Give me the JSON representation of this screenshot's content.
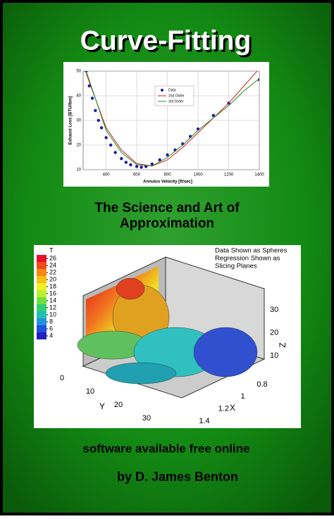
{
  "title": "Curve-Fitting",
  "fit_chart": {
    "type": "scatter",
    "xlabel": "Annulus Velocity [ft/sec]",
    "ylabel": "Exhaust Loss [BTU/lbm]",
    "xlim": [
      250,
      1400
    ],
    "ylim": [
      10,
      50
    ],
    "xticks": [
      400,
      600,
      800,
      1000,
      1200,
      1400
    ],
    "yticks": [
      10,
      20,
      30,
      40,
      50
    ],
    "grid": true,
    "legend": "upper-center",
    "series": [
      {
        "name": "Data",
        "color": "#1a1aa6",
        "kind": "points",
        "x": [
          270,
          290,
          310,
          330,
          350,
          370,
          400,
          430,
          460,
          500,
          530,
          560,
          600,
          630,
          660,
          700,
          750,
          800,
          850,
          900,
          950,
          1000,
          1100,
          1200,
          1400
        ],
        "values": [
          50,
          44,
          39,
          34,
          30,
          27,
          23,
          20,
          17,
          14.5,
          13,
          12,
          11.3,
          11,
          11.3,
          12.3,
          14,
          16,
          18,
          20.5,
          23.5,
          26.5,
          32,
          37,
          46.5
        ]
      },
      {
        "name": "2nd Order",
        "color": "#cc2222",
        "kind": "line",
        "x": [
          270,
          400,
          500,
          600,
          700,
          800,
          900,
          1000,
          1100,
          1200,
          1300,
          1400
        ],
        "values": [
          49,
          27,
          18,
          12.5,
          11.5,
          14,
          19,
          25,
          31,
          37,
          44,
          51
        ]
      },
      {
        "name": "3rd Order",
        "color": "#228822",
        "kind": "line",
        "x": [
          270,
          400,
          500,
          600,
          700,
          800,
          900,
          1000,
          1100,
          1200,
          1300,
          1400
        ],
        "values": [
          50,
          26,
          17,
          12,
          11.5,
          15,
          20,
          26,
          31,
          36,
          42,
          47
        ]
      }
    ]
  },
  "subtitle": [
    "The Science and Art of",
    "Approximation"
  ],
  "surface_chart": {
    "annotation": [
      "Data Shown as Spheres",
      "Regression Shown as",
      "Slicing Planes"
    ],
    "colorbar_title": "T",
    "colorbar_ticks": [
      26,
      24,
      22,
      20,
      18,
      16,
      14,
      12,
      10,
      8,
      6,
      4
    ],
    "colorbar_colors": [
      "#e8102a",
      "#f04a1a",
      "#f78a10",
      "#f7c010",
      "#f0f020",
      "#b8f030",
      "#70e040",
      "#30d070",
      "#20c0b0",
      "#2090e0",
      "#2050e0",
      "#2020c0"
    ],
    "ylabel": "Y",
    "yticks": [
      0,
      10,
      20,
      30
    ],
    "xlabel": "X",
    "xticks": [
      0.8,
      1,
      1.2,
      1.4
    ],
    "zlabel": "Z",
    "zticks": [
      10,
      20,
      30
    ]
  },
  "tagline": "software available free online",
  "author": "by D. James Benton"
}
